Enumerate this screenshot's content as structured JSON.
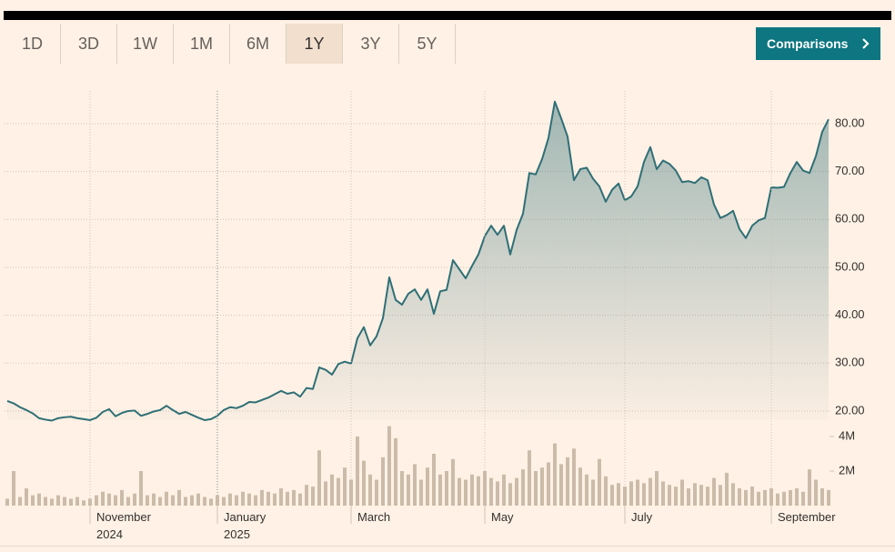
{
  "toolbar": {
    "ranges": [
      "1D",
      "3D",
      "1W",
      "1M",
      "6M",
      "1Y",
      "3Y",
      "5Y"
    ],
    "selected": 5,
    "comparisons": "Comparisons"
  },
  "chart_data": [
    {
      "type": "area",
      "color": "#2f6f76",
      "grid": true,
      "ylim": [
        18,
        87
      ],
      "yticks": [
        {
          "value": 20,
          "label": "20.00"
        },
        {
          "value": 30,
          "label": "30.00"
        },
        {
          "value": 40,
          "label": "40.00"
        },
        {
          "value": 50,
          "label": "50.00"
        },
        {
          "value": 60,
          "label": "60.00"
        },
        {
          "value": 70,
          "label": "70.00"
        },
        {
          "value": 80,
          "label": "80.00"
        }
      ],
      "values": [
        22.1,
        21.6,
        20.8,
        20.2,
        19.5,
        18.5,
        18.2,
        18.0,
        18.5,
        18.7,
        18.8,
        18.5,
        18.3,
        18.1,
        18.6,
        19.8,
        20.4,
        18.9,
        19.6,
        20.0,
        20.1,
        19.0,
        19.4,
        19.9,
        20.2,
        21.1,
        20.2,
        19.4,
        19.8,
        19.2,
        18.6,
        18.1,
        18.3,
        19.0,
        20.2,
        20.8,
        20.6,
        21.1,
        21.9,
        21.8,
        22.3,
        22.8,
        23.5,
        24.2,
        23.6,
        23.9,
        23.0,
        24.8,
        24.6,
        29.1,
        28.6,
        27.6,
        29.8,
        30.3,
        29.9,
        35.2,
        37.5,
        33.7,
        35.6,
        39.4,
        47.9,
        43.2,
        42.2,
        44.5,
        45.4,
        43.2,
        45.4,
        40.3,
        45.0,
        45.3,
        51.5,
        49.6,
        47.7,
        50.3,
        52.7,
        56.5,
        58.7,
        56.8,
        58.7,
        52.7,
        57.8,
        61.2,
        69.7,
        69.4,
        72.6,
        77.0,
        84.6,
        81.1,
        77.3,
        68.2,
        70.5,
        70.8,
        68.5,
        66.9,
        63.7,
        66.2,
        67.5,
        64.0,
        64.8,
        66.9,
        72.0,
        75.1,
        70.5,
        72.3,
        71.6,
        70.2,
        67.8,
        68.0,
        67.6,
        68.8,
        68.2,
        63.1,
        60.3,
        60.9,
        61.8,
        58.0,
        56.1,
        58.7,
        59.8,
        60.3,
        66.7,
        66.6,
        66.8,
        69.7,
        72.0,
        70.2,
        69.7,
        73.2,
        78.3,
        80.9
      ]
    },
    {
      "type": "bar",
      "color": "#cbbba9",
      "ylim": [
        0,
        5000000
      ],
      "yticks": [
        {
          "value": 2000000,
          "label": "2M"
        },
        {
          "value": 4000000,
          "label": "4M"
        }
      ],
      "categories": [
        null,
        null,
        null,
        null,
        null,
        null,
        null,
        null,
        null,
        null,
        null,
        null,
        null,
        "November 2024",
        null,
        null,
        null,
        null,
        null,
        null,
        null,
        null,
        null,
        null,
        null,
        null,
        null,
        null,
        null,
        null,
        null,
        null,
        null,
        "January 2025",
        null,
        null,
        null,
        null,
        null,
        null,
        null,
        null,
        null,
        null,
        null,
        null,
        null,
        null,
        null,
        null,
        null,
        null,
        null,
        null,
        "March",
        null,
        null,
        null,
        null,
        null,
        null,
        null,
        null,
        null,
        null,
        null,
        null,
        null,
        null,
        null,
        null,
        null,
        null,
        null,
        null,
        "May",
        null,
        null,
        null,
        null,
        null,
        null,
        null,
        null,
        null,
        null,
        null,
        null,
        null,
        null,
        null,
        null,
        null,
        null,
        null,
        null,
        null,
        "July",
        null,
        null,
        null,
        null,
        null,
        null,
        null,
        null,
        null,
        null,
        null,
        null,
        null,
        null,
        null,
        null,
        null,
        null,
        null,
        null,
        null,
        null,
        "September",
        null,
        null,
        null,
        null,
        null,
        null,
        null,
        null,
        null
      ],
      "values": [
        400000,
        2000000,
        500000,
        1000000,
        600000,
        700000,
        500000,
        400000,
        600000,
        500000,
        400000,
        500000,
        300000,
        400000,
        600000,
        800000,
        700000,
        600000,
        900000,
        500000,
        700000,
        2000000,
        600000,
        700000,
        500000,
        800000,
        600000,
        900000,
        500000,
        600000,
        700000,
        500000,
        400000,
        600000,
        500000,
        700000,
        600000,
        800000,
        700000,
        600000,
        900000,
        800000,
        700000,
        1000000,
        800000,
        900000,
        700000,
        1200000,
        1100000,
        3200000,
        1400000,
        1800000,
        1600000,
        2200000,
        1500000,
        4000000,
        2600000,
        1800000,
        1500000,
        2800000,
        4600000,
        3900000,
        2000000,
        1800000,
        2400000,
        1500000,
        2200000,
        3000000,
        1800000,
        2000000,
        2700000,
        1600000,
        1500000,
        1800000,
        1700000,
        2000000,
        1600000,
        1400000,
        1800000,
        1300000,
        1600000,
        2100000,
        3200000,
        2000000,
        2200000,
        2500000,
        3600000,
        2400000,
        2800000,
        3300000,
        2200000,
        1800000,
        1500000,
        2700000,
        1700000,
        1200000,
        1300000,
        1100000,
        1400000,
        1500000,
        1300000,
        1600000,
        2000000,
        1400000,
        1200000,
        1100000,
        1500000,
        1000000,
        1300000,
        1200000,
        1100000,
        1600000,
        1200000,
        1900000,
        1300000,
        1000000,
        900000,
        1100000,
        800000,
        900000,
        1000000,
        700000,
        800000,
        900000,
        1000000,
        800000,
        2100000,
        1500000,
        1000000,
        900000
      ]
    }
  ]
}
